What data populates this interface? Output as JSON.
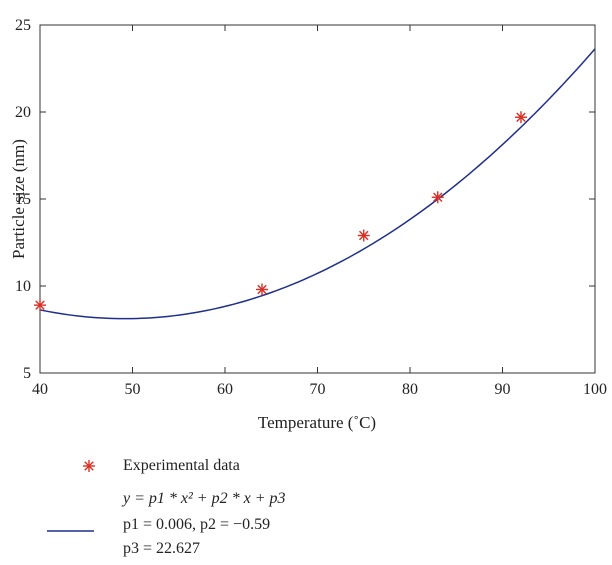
{
  "chart_data": {
    "type": "scatter",
    "title": "",
    "xlabel": "Temperature (˚C)",
    "ylabel": "Particle size (nm)",
    "xlim": [
      40,
      100
    ],
    "ylim": [
      5,
      25
    ],
    "xticks": [
      40,
      50,
      60,
      70,
      80,
      90,
      100
    ],
    "yticks": [
      5,
      10,
      15,
      20,
      25
    ],
    "grid": false,
    "legend_position": "bottom",
    "series": [
      {
        "name": "Experimental data",
        "kind": "scatter",
        "marker": "asterisk",
        "color": "#d93025",
        "x": [
          40,
          64,
          75,
          83,
          92
        ],
        "y": [
          8.9,
          9.8,
          12.9,
          15.1,
          19.7
        ]
      },
      {
        "kind": "line",
        "color": "#1f2f8a",
        "fit": {
          "p1": 0.006,
          "p2": -0.59,
          "p3": 22.627
        }
      }
    ],
    "legend": {
      "scatter_label": "Experimental data",
      "fit_lines": [
        "y = p1 * x² + p2 * x + p3",
        "p1 = 0.006, p2 = −0.59",
        "p3 = 22.627"
      ]
    }
  }
}
